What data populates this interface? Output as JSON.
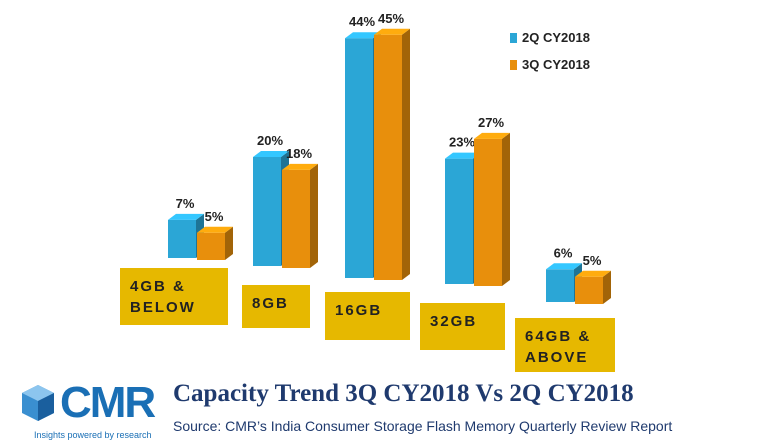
{
  "logo": {
    "name": "CMR",
    "tagline": "Insights powered by research"
  },
  "chart_data": {
    "type": "bar3d",
    "title": "Capacity Trend 3Q CY2018 Vs 2Q CY2018",
    "source": "Source: CMR’s India Consumer Storage Flash Memory Quarterly Review Report",
    "categories": [
      "4GB & BELOW",
      "8GB",
      "16GB",
      "32GB",
      "64GB & ABOVE"
    ],
    "series": [
      {
        "name": "2Q CY2018",
        "color": "#2ba6d6",
        "values": [
          7,
          20,
          44,
          23,
          6
        ],
        "value_labels": [
          "7%",
          "20%",
          "44%",
          "23%",
          "6%"
        ]
      },
      {
        "name": "3Q CY2018",
        "color": "#e88f0c",
        "values": [
          5,
          18,
          45,
          27,
          5
        ],
        "value_labels": [
          "5%",
          "18%",
          "45%",
          "27%",
          "5%"
        ]
      }
    ],
    "legend": "top-right"
  }
}
